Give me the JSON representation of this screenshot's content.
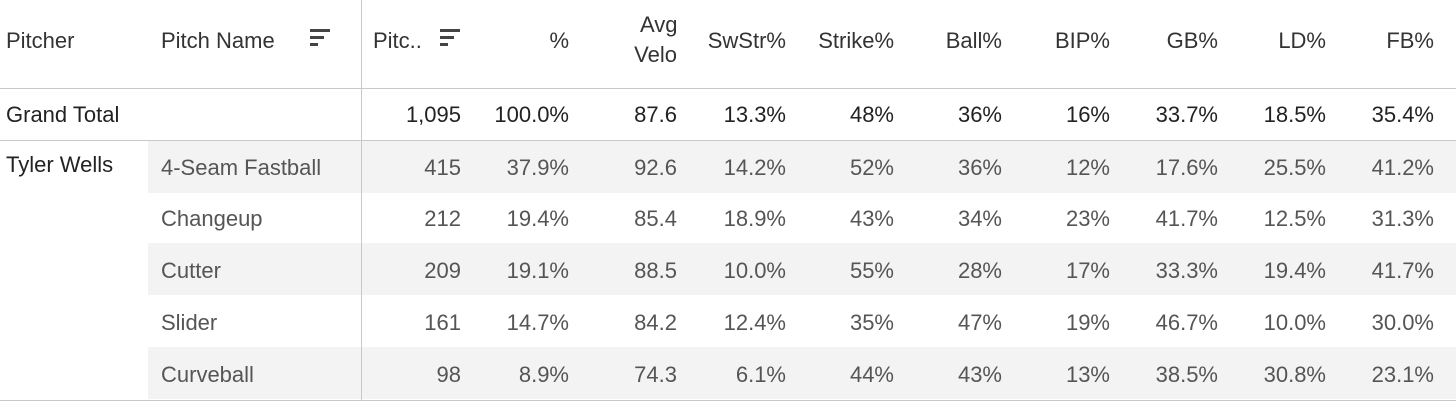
{
  "headers": {
    "pitcher": "Pitcher",
    "pitch_name": "Pitch Name",
    "pitches": "Pitc..",
    "pct": "%",
    "avg_velo_line1": "Avg",
    "avg_velo_line2": "Velo",
    "swstr": "SwStr%",
    "strike": "Strike%",
    "ball": "Ball%",
    "bip": "BIP%",
    "gb": "GB%",
    "ld": "LD%",
    "fb": "FB%"
  },
  "grand_total": {
    "label": "Grand Total",
    "pitches": "1,095",
    "pct": "100.0%",
    "avg_velo": "87.6",
    "swstr": "13.3%",
    "strike": "48%",
    "ball": "36%",
    "bip": "16%",
    "gb": "33.7%",
    "ld": "18.5%",
    "fb": "35.4%"
  },
  "pitcher_name": "Tyler Wells",
  "rows": [
    {
      "name": "4-Seam Fastball",
      "pitches": "415",
      "pct": "37.9%",
      "avg_velo": "92.6",
      "swstr": "14.2%",
      "strike": "52%",
      "ball": "36%",
      "bip": "12%",
      "gb": "17.6%",
      "ld": "25.5%",
      "fb": "41.2%"
    },
    {
      "name": "Changeup",
      "pitches": "212",
      "pct": "19.4%",
      "avg_velo": "85.4",
      "swstr": "18.9%",
      "strike": "43%",
      "ball": "34%",
      "bip": "23%",
      "gb": "41.7%",
      "ld": "12.5%",
      "fb": "31.3%"
    },
    {
      "name": "Cutter",
      "pitches": "209",
      "pct": "19.1%",
      "avg_velo": "88.5",
      "swstr": "10.0%",
      "strike": "55%",
      "ball": "28%",
      "bip": "17%",
      "gb": "33.3%",
      "ld": "19.4%",
      "fb": "41.7%"
    },
    {
      "name": "Slider",
      "pitches": "161",
      "pct": "14.7%",
      "avg_velo": "84.2",
      "swstr": "12.4%",
      "strike": "35%",
      "ball": "47%",
      "bip": "19%",
      "gb": "46.7%",
      "ld": "10.0%",
      "fb": "30.0%"
    },
    {
      "name": "Curveball",
      "pitches": "98",
      "pct": "8.9%",
      "avg_velo": "74.3",
      "swstr": "6.1%",
      "strike": "44%",
      "ball": "43%",
      "bip": "13%",
      "gb": "38.5%",
      "ld": "30.8%",
      "fb": "23.1%"
    }
  ],
  "icons": {
    "pitch_name_sort": "sort-descending-icon",
    "pitches_sort": "sort-descending-icon"
  }
}
